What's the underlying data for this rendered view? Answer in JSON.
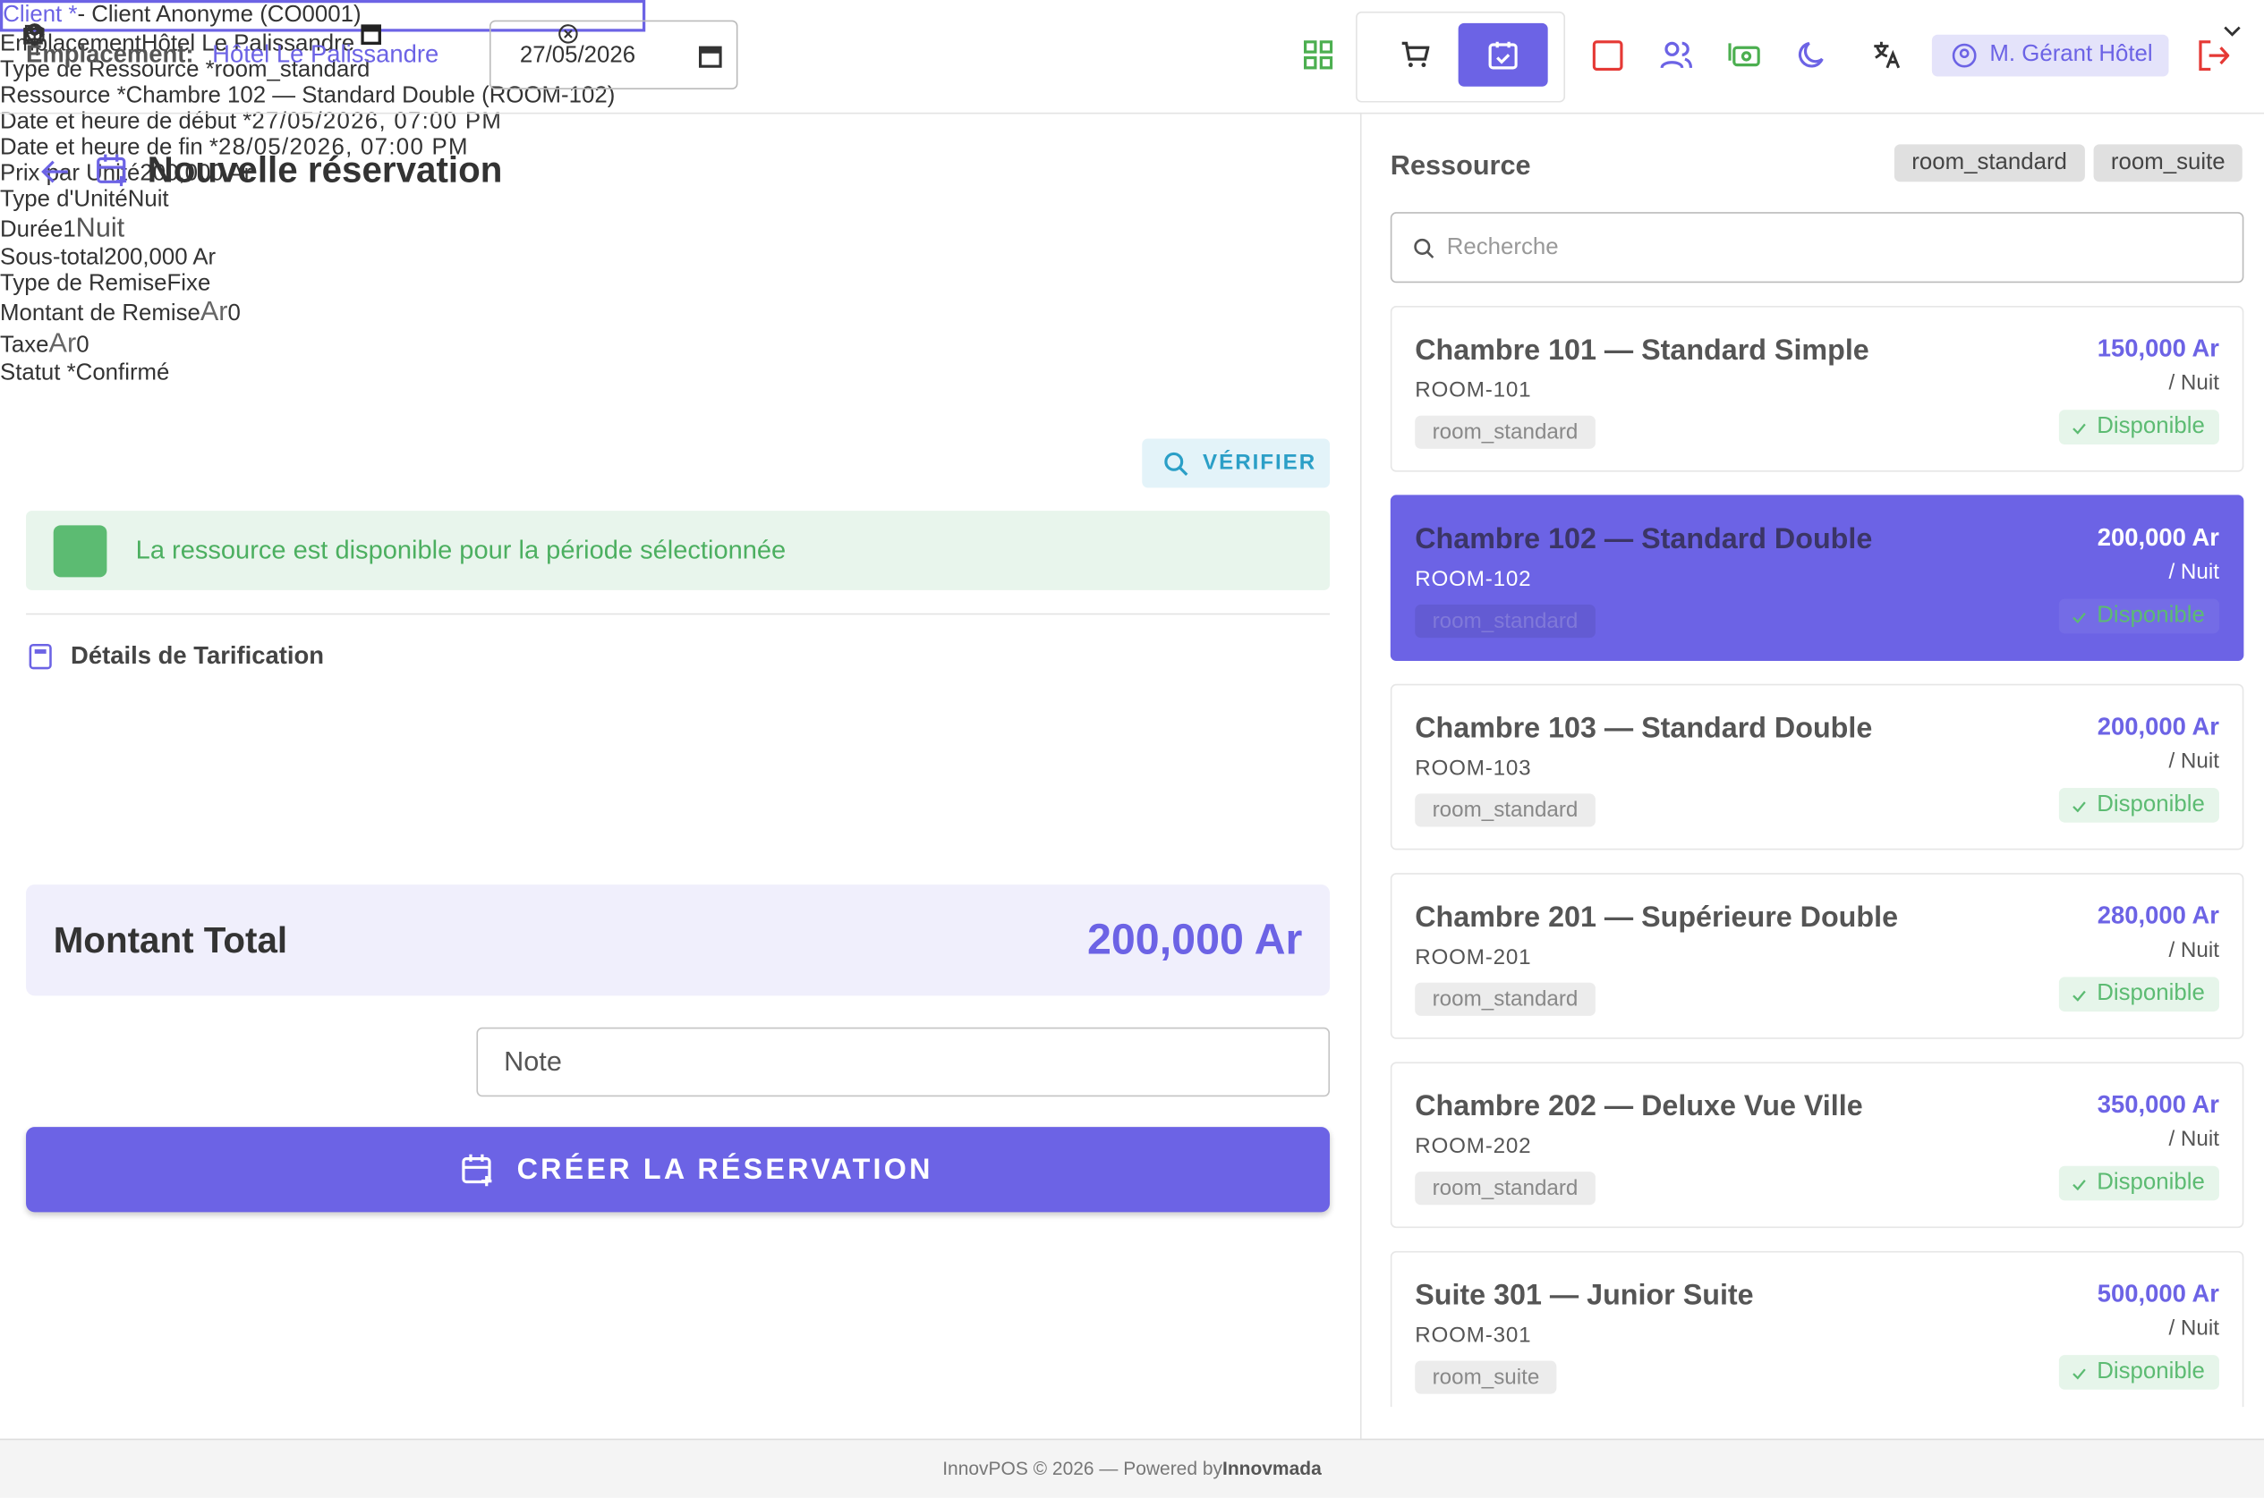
{
  "header": {
    "location_label": "Emplacement:",
    "location": "Hôtel Le Palissandre",
    "date": "27/05/2026",
    "user": "M. Gérant Hôtel"
  },
  "page_title": "Nouvelle réservation",
  "form": {
    "client": {
      "label": "Client *",
      "value": "- Client Anonyme (CO0001)"
    },
    "location": {
      "label": "Emplacement",
      "value": "Hôtel Le Palissandre"
    },
    "resource_type": {
      "label": "Type de Ressource *",
      "value": "room_standard"
    },
    "resource": {
      "label": "Ressource *",
      "value": "Chambre 102 — Standard Double (ROOM-102)"
    },
    "start": {
      "label": "Date et heure de début *",
      "value": "27/05/2026, 07:00 PM"
    },
    "end": {
      "label": "Date et heure de fin *",
      "value": "28/05/2026, 07:00 PM"
    },
    "verify": "VÉRIFIER",
    "availability": "La ressource est disponible pour la période sélectionnée"
  },
  "pricing": {
    "title": "Détails de Tarification",
    "unit_price": {
      "label": "Prix par Unité",
      "value": "200,000 Ar"
    },
    "unit_type": {
      "label": "Type d'Unité",
      "value": "Nuit"
    },
    "duration": {
      "label": "Durée",
      "value": "1",
      "unit": "Nuit"
    },
    "subtotal": {
      "label": "Sous-total",
      "value": "200,000 Ar"
    },
    "discount_type": {
      "label": "Type de Remise",
      "value": "Fixe"
    },
    "discount_amount": {
      "label": "Montant de Remise",
      "prefix": "Ar",
      "value": "0"
    },
    "tax": {
      "label": "Taxe",
      "prefix": "Ar",
      "value": "0"
    }
  },
  "total": {
    "label": "Montant Total",
    "value": "200,000 Ar"
  },
  "status": {
    "label": "Statut *",
    "value": "Confirmé"
  },
  "note_placeholder": "Note",
  "submit": "CRÉER LA RÉSERVATION",
  "resources": {
    "title": "Ressource",
    "filters": [
      "room_standard",
      "room_suite"
    ],
    "search_placeholder": "Recherche",
    "items": [
      {
        "name": "Chambre 101 — Standard Simple",
        "code": "ROOM-101",
        "type": "room_standard",
        "price": "150,000 Ar",
        "unit": "/ Nuit",
        "status": "Disponible",
        "selected": false
      },
      {
        "name": "Chambre 102 — Standard Double",
        "code": "ROOM-102",
        "type": "room_standard",
        "price": "200,000 Ar",
        "unit": "/ Nuit",
        "status": "Disponible",
        "selected": true
      },
      {
        "name": "Chambre 103 — Standard Double",
        "code": "ROOM-103",
        "type": "room_standard",
        "price": "200,000 Ar",
        "unit": "/ Nuit",
        "status": "Disponible",
        "selected": false
      },
      {
        "name": "Chambre 201 — Supérieure Double",
        "code": "ROOM-201",
        "type": "room_standard",
        "price": "280,000 Ar",
        "unit": "/ Nuit",
        "status": "Disponible",
        "selected": false
      },
      {
        "name": "Chambre 202 — Deluxe Vue Ville",
        "code": "ROOM-202",
        "type": "room_standard",
        "price": "350,000 Ar",
        "unit": "/ Nuit",
        "status": "Disponible",
        "selected": false
      },
      {
        "name": "Suite 301 — Junior Suite",
        "code": "ROOM-301",
        "type": "room_suite",
        "price": "500,000 Ar",
        "unit": "/ Nuit",
        "status": "Disponible",
        "selected": false
      }
    ]
  },
  "footer": {
    "text": "InnovPOS © 2026 — Powered by",
    "brand": "Innovmada"
  }
}
